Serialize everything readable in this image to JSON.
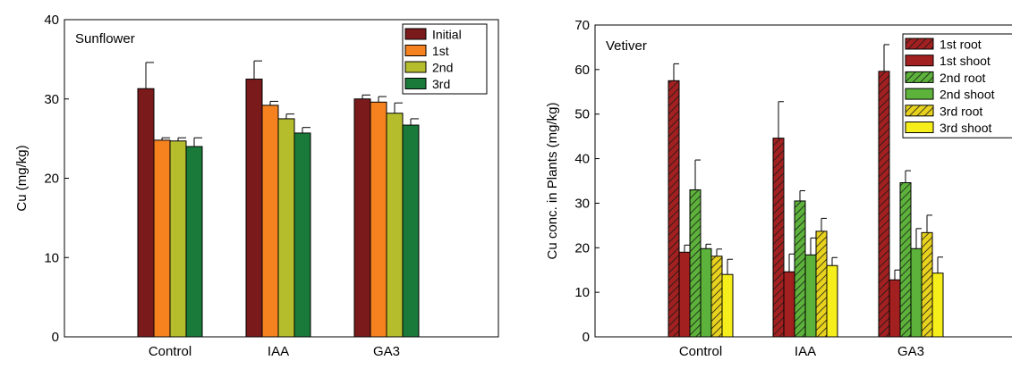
{
  "chart_data": [
    {
      "type": "bar",
      "title": "Sunflower",
      "xlabel": "",
      "ylabel": "Cu (mg/kg)",
      "ylim": [
        0,
        40
      ],
      "yticks": [
        0,
        10,
        20,
        30,
        40
      ],
      "grid": false,
      "legend_position": "top-right",
      "categories": [
        "Control",
        "IAA",
        "GA3"
      ],
      "series": [
        {
          "name": "Initial",
          "color": "#7B1A1A",
          "hatch": false,
          "values": [
            31.3,
            32.5,
            30.0
          ],
          "errors": [
            3.3,
            2.3,
            0.5
          ]
        },
        {
          "name": "1st",
          "color": "#F5821F",
          "hatch": false,
          "values": [
            24.8,
            29.2,
            29.6
          ],
          "errors": [
            0.3,
            0.5,
            0.7
          ]
        },
        {
          "name": "2nd",
          "color": "#B5BD2C",
          "hatch": false,
          "values": [
            24.7,
            27.5,
            28.2
          ],
          "errors": [
            0.4,
            0.6,
            1.3
          ]
        },
        {
          "name": "3rd",
          "color": "#1A7A3A",
          "hatch": false,
          "values": [
            24.0,
            25.7,
            26.7
          ],
          "errors": [
            1.1,
            0.7,
            0.8
          ]
        }
      ]
    },
    {
      "type": "bar",
      "title": "Vetiver",
      "xlabel": "",
      "ylabel": "Cu conc. in Plants (mg/kg)",
      "ylim": [
        0,
        70
      ],
      "yticks": [
        0,
        10,
        20,
        30,
        40,
        50,
        60,
        70
      ],
      "grid": false,
      "legend_position": "top-right",
      "categories": [
        "Control",
        "IAA",
        "GA3"
      ],
      "series": [
        {
          "name": "1st root",
          "color": "#A32020",
          "hatch": true,
          "values": [
            57.5,
            44.6,
            59.6
          ],
          "errors": [
            3.8,
            8.2,
            6.0
          ]
        },
        {
          "name": "1st shoot",
          "color": "#A32020",
          "hatch": false,
          "values": [
            19.0,
            14.6,
            12.8
          ],
          "errors": [
            1.6,
            4.0,
            2.2
          ]
        },
        {
          "name": "2nd root",
          "color": "#5CB23A",
          "hatch": true,
          "values": [
            33.0,
            30.5,
            34.6
          ],
          "errors": [
            6.7,
            2.3,
            2.7
          ]
        },
        {
          "name": "2nd shoot",
          "color": "#5CB23A",
          "hatch": false,
          "values": [
            19.8,
            18.4,
            19.8
          ],
          "errors": [
            1.0,
            3.8,
            4.5
          ]
        },
        {
          "name": "3rd root",
          "color": "#E8D21E",
          "hatch": true,
          "values": [
            18.1,
            23.7,
            23.4
          ],
          "errors": [
            1.6,
            2.9,
            3.9
          ]
        },
        {
          "name": "3rd shoot",
          "color": "#F6EE1A",
          "hatch": false,
          "values": [
            14.0,
            16.0,
            14.3
          ],
          "errors": [
            3.4,
            1.8,
            3.6
          ]
        }
      ]
    }
  ]
}
